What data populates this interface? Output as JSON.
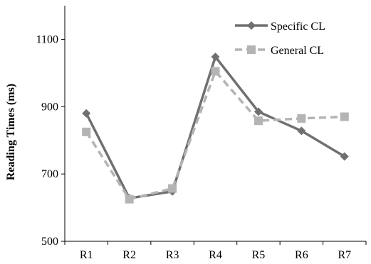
{
  "chart_data": {
    "type": "line",
    "categories": [
      "R1",
      "R2",
      "R3",
      "R4",
      "R5",
      "R6",
      "R7"
    ],
    "series": [
      {
        "name": "Specific CL",
        "values": [
          880,
          628,
          648,
          1048,
          885,
          828,
          752
        ],
        "color": "#707070",
        "marker": "diamond",
        "dash": "solid"
      },
      {
        "name": "General CL",
        "values": [
          825,
          625,
          657,
          1005,
          858,
          865,
          870
        ],
        "color": "#b4b4b4",
        "marker": "square",
        "dash": "dashed"
      }
    ],
    "title": "",
    "xlabel": "",
    "ylabel": "Reading Times (ms)",
    "ylim": [
      500,
      1200
    ],
    "yticks": [
      500,
      700,
      900,
      1100
    ],
    "grid": false,
    "legend": "top-right"
  }
}
